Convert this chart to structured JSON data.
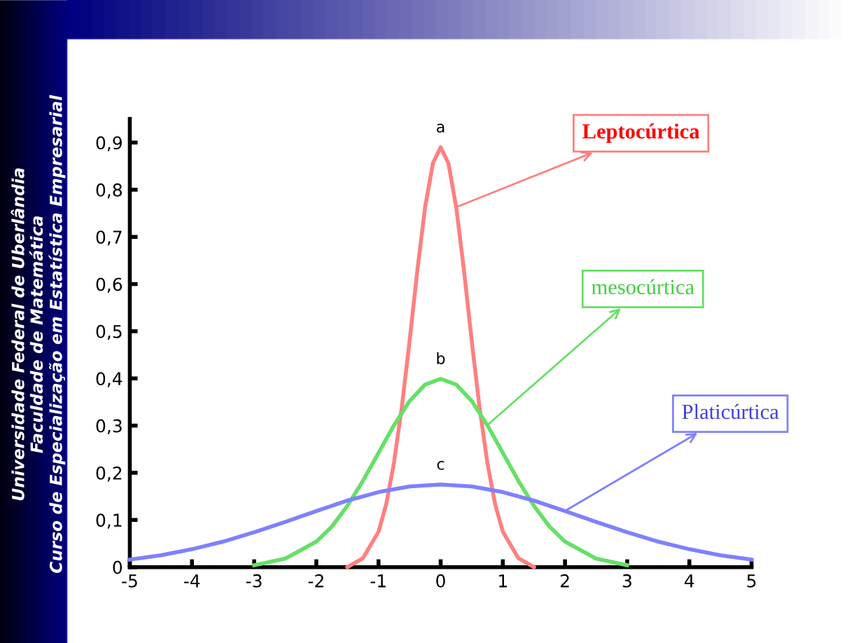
{
  "chart_data": {
    "type": "line",
    "series": [
      {
        "name": "Leptocúrtica",
        "color": "#ff8080",
        "x": [
          -1.5,
          -1.25,
          -1,
          -0.875,
          -0.75,
          -0.625,
          -0.5,
          -0.375,
          -0.25,
          -0.125,
          0,
          0.125,
          0.25,
          0.375,
          0.5,
          0.625,
          0.75,
          0.875,
          1,
          1.25,
          1.5
        ],
        "values": [
          0,
          0.019,
          0.075,
          0.134,
          0.222,
          0.339,
          0.479,
          0.629,
          0.763,
          0.856,
          0.89,
          0.856,
          0.763,
          0.629,
          0.479,
          0.339,
          0.222,
          0.134,
          0.075,
          0.019,
          0
        ]
      },
      {
        "name": "mesocúrtica",
        "color": "#66e066",
        "x": [
          -3,
          -2.5,
          -2,
          -1.75,
          -1.5,
          -1.25,
          -1,
          -0.75,
          -0.5,
          -0.25,
          0,
          0.25,
          0.5,
          0.75,
          1,
          1.25,
          1.5,
          1.75,
          2,
          2.5,
          3
        ],
        "values": [
          0.004,
          0.018,
          0.054,
          0.086,
          0.13,
          0.183,
          0.242,
          0.301,
          0.352,
          0.387,
          0.399,
          0.387,
          0.352,
          0.301,
          0.242,
          0.183,
          0.13,
          0.086,
          0.054,
          0.018,
          0.004
        ]
      },
      {
        "name": "Platicúrtica",
        "color": "#8080ff",
        "x": [
          -5,
          -4.5,
          -4,
          -3.5,
          -3,
          -2.5,
          -2,
          -1.5,
          -1,
          -0.5,
          0,
          0.5,
          1,
          1.5,
          2,
          2.5,
          3,
          3.5,
          4,
          4.5,
          5
        ],
        "values": [
          0.016,
          0.025,
          0.038,
          0.054,
          0.074,
          0.096,
          0.119,
          0.141,
          0.159,
          0.171,
          0.175,
          0.171,
          0.159,
          0.141,
          0.119,
          0.096,
          0.074,
          0.054,
          0.038,
          0.025,
          0.016
        ]
      }
    ],
    "xlim": [
      -5,
      5
    ],
    "ylim": [
      0,
      0.95
    ],
    "xticks": [
      -5,
      -4,
      -3,
      -2,
      -1,
      0,
      1,
      2,
      3,
      4,
      5
    ],
    "yticks": [
      0,
      {
        "value": 0.1,
        "label": "0,1"
      },
      {
        "value": 0.2,
        "label": "0,2"
      },
      {
        "value": 0.3,
        "label": "0,3"
      },
      {
        "value": 0.4,
        "label": "0,4"
      },
      {
        "value": 0.5,
        "label": "0,5"
      },
      {
        "value": 0.6,
        "label": "0,6"
      },
      {
        "value": 0.7,
        "label": "0,7"
      },
      {
        "value": 0.8,
        "label": "0,8"
      },
      {
        "value": 0.9,
        "label": "0,9"
      }
    ],
    "grid": false,
    "legend": false,
    "marker": "none",
    "line_style": "solid",
    "annotations": [
      "a",
      "b",
      "c",
      "Universidade Federal de Uberlândia\nFaculdade de Matemática\nCurso de Especialização em Estatística Empresarial"
    ]
  }
}
